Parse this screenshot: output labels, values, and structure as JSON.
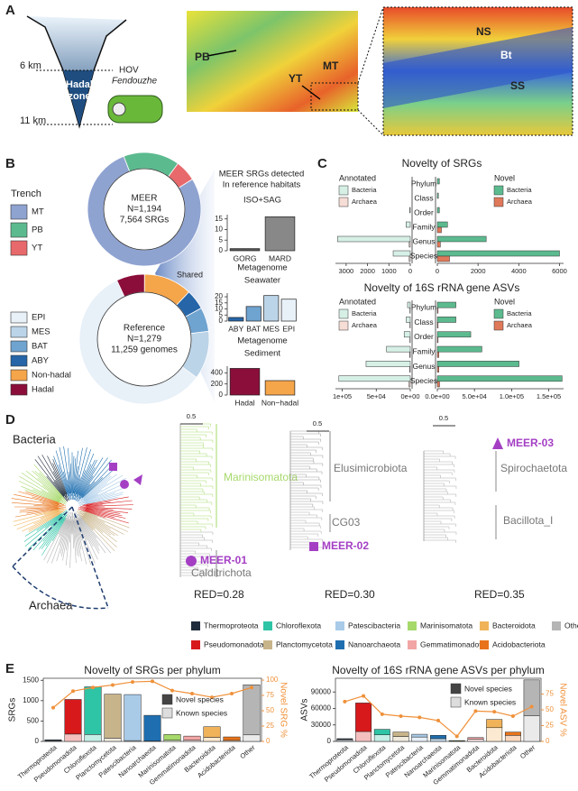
{
  "panel_labels": [
    "A",
    "B",
    "C",
    "D",
    "E"
  ],
  "panel_a": {
    "depths": [
      "6 km",
      "11 km"
    ],
    "zone": [
      "Hadal",
      "zone"
    ],
    "vehicle": [
      "HOV",
      "Fendouzhe"
    ],
    "map_labels": [
      "PB",
      "YT",
      "MT"
    ],
    "zoom_labels": [
      "NS",
      "Bt",
      "SS"
    ]
  },
  "panel_b": {
    "header": [
      "MEER SRGs detected",
      "In reference habitats"
    ],
    "shared": "Shared"
  },
  "panel_d": {
    "domains": [
      "Bacteria",
      "Archaea"
    ],
    "scale": "0.5",
    "trees": [
      {
        "labels": [
          "Marinisomatota",
          "Calditrichota"
        ],
        "genome": "MEER-01",
        "red": "RED=0.28"
      },
      {
        "labels": [
          "Elusimicrobiota",
          "CG03"
        ],
        "genome": "MEER-02",
        "red": "RED=0.30"
      },
      {
        "labels": [
          "Spirochaetota",
          "Bacillota_I"
        ],
        "genome": "MEER-03",
        "red": "RED=0.35"
      }
    ],
    "phyla": [
      {
        "name": "Thermoproteota",
        "color": "#1f2d3d"
      },
      {
        "name": "Pseudomonadota",
        "color": "#d7191c"
      },
      {
        "name": "Chloroflexota",
        "color": "#2ec4a6"
      },
      {
        "name": "Planctomycetota",
        "color": "#c8b48a"
      },
      {
        "name": "Patescibacteria",
        "color": "#a9cbe8"
      },
      {
        "name": "Nanoarchaeota",
        "color": "#1f6fb0"
      },
      {
        "name": "Marinisomatota",
        "color": "#a6d96a"
      },
      {
        "name": "Gemmatimonadota",
        "color": "#f2a5a5"
      },
      {
        "name": "Bacteroidota",
        "color": "#f0b35a"
      },
      {
        "name": "Acidobacteriota",
        "color": "#e8731a"
      },
      {
        "name": "Other",
        "color": "#b5b5b5"
      }
    ]
  },
  "chart_data": [
    {
      "type": "pie",
      "legend_title": "Trench",
      "center_text": [
        "MEER",
        "N=1,194",
        "7,564 SRGs"
      ],
      "categories": [
        "MT",
        "PB",
        "YT"
      ],
      "values": [
        78,
        16,
        6
      ],
      "colors": [
        "#8fa3d1",
        "#5cba8f",
        "#e8696b"
      ]
    },
    {
      "type": "pie",
      "center_text": [
        "Reference",
        "N=1,279",
        "11,259 genomes"
      ],
      "categories": [
        "EPI",
        "MES",
        "BAT",
        "ABY",
        "Non-hadal",
        "Hadal"
      ],
      "values": [
        58,
        12,
        6,
        5,
        12,
        7
      ],
      "colors": [
        "#e8f0f8",
        "#bcd4e8",
        "#6fa3d0",
        "#2565a8",
        "#f5a54a",
        "#8b0e3a"
      ]
    },
    {
      "type": "bar",
      "title": [
        "ISO+SAG"
      ],
      "categories": [
        "GORG",
        "MARD"
      ],
      "values": [
        1,
        16
      ],
      "colors": [
        "#555555",
        "#888888"
      ],
      "ylim": [
        0,
        17
      ],
      "yticks": [
        0,
        5,
        10,
        15
      ]
    },
    {
      "type": "bar",
      "title": [
        "Metagenome",
        "Seawater"
      ],
      "categories": [
        "ABY",
        "BAT",
        "MES",
        "EPI"
      ],
      "values": [
        3,
        12,
        21,
        18
      ],
      "colors": [
        "#2565a8",
        "#6fa3d0",
        "#bcd4e8",
        "#e8f0f8"
      ],
      "ylim": [
        0,
        23
      ],
      "yticks": [
        0,
        5,
        10,
        15,
        20
      ]
    },
    {
      "type": "bar",
      "title": [
        "Metagenome",
        "Sediment"
      ],
      "categories": [
        "Hadal",
        "Non−hadal"
      ],
      "values": [
        480,
        260
      ],
      "colors": [
        "#8b0e3a",
        "#f5a54a"
      ],
      "ylim": [
        0,
        520
      ],
      "yticks": [
        0,
        200,
        400
      ]
    },
    {
      "type": "butterfly",
      "title": "Novelty of SRGs",
      "categories": [
        "Phylum",
        "Class",
        "Order",
        "Family",
        "Genus",
        "Species"
      ],
      "sides": [
        {
          "legend_title": "Annotated",
          "xlim": [
            0,
            3500
          ],
          "xticks": [
            3000,
            2000,
            1000,
            0
          ],
          "series": [
            {
              "name": "Bacteria",
              "color": "#d6f0e6",
              "values": [
                0,
                0,
                30,
                200,
                3400,
                800
              ]
            },
            {
              "name": "Archaea",
              "color": "#f6ddd5",
              "values": [
                0,
                0,
                0,
                0,
                50,
                50
              ]
            }
          ]
        },
        {
          "legend_title": "Novel",
          "xlim": [
            0,
            6200
          ],
          "xticks": [
            0,
            2000,
            4000,
            6000
          ],
          "series": [
            {
              "name": "Bacteria",
              "color": "#5cba8f",
              "values": [
                100,
                50,
                100,
                500,
                2400,
                6000
              ]
            },
            {
              "name": "Archaea",
              "color": "#e0795a",
              "values": [
                0,
                0,
                0,
                200,
                150,
                600
              ]
            }
          ]
        }
      ]
    },
    {
      "type": "butterfly",
      "title": "Novelty of 16S rRNA gene ASVs",
      "categories": [
        "Phylum",
        "Class",
        "Order",
        "Family",
        "Genus",
        "Species"
      ],
      "sides": [
        {
          "legend_title": "Annotated",
          "xlim": [
            0,
            110000
          ],
          "xticks": [
            {
              "value": 100000,
              "label": "1e+05"
            },
            {
              "value": 50000,
              "label": "5e+04"
            },
            {
              "value": 0,
              "label": "0e+00"
            }
          ],
          "series": [
            {
              "name": "Bacteria",
              "color": "#d6f0e6",
              "values": [
                4000,
                6000,
                9000,
                35000,
                65000,
                105000
              ]
            },
            {
              "name": "Archaea",
              "color": "#f6ddd5",
              "values": [
                500,
                500,
                500,
                1000,
                1000,
                2000
              ]
            }
          ]
        },
        {
          "legend_title": "Novel",
          "xlim": [
            0,
            170000
          ],
          "xticks": [
            {
              "value": 0,
              "label": "0.0e+00"
            },
            {
              "value": 50000,
              "label": "5.0e+04"
            },
            {
              "value": 100000,
              "label": "1.0e+05"
            },
            {
              "value": 150000,
              "label": "1.5e+05"
            }
          ],
          "series": [
            {
              "name": "Bacteria",
              "color": "#5cba8f",
              "values": [
                25000,
                25000,
                45000,
                60000,
                110000,
                168000
              ]
            },
            {
              "name": "Archaea",
              "color": "#e0795a",
              "values": [
                1000,
                1000,
                1000,
                2000,
                2000,
                3000
              ]
            }
          ]
        }
      ]
    },
    {
      "type": "combo",
      "title": "Novelty of SRGs per phylum",
      "ylabel": "SRGs",
      "categories": [
        "Thermoproteota",
        "Pseudomonadota",
        "Chloroflexota",
        "Planctomycetota",
        "Patescibacteria",
        "Nanoarchaeota",
        "Marinisomatota",
        "Gemmatimonadota",
        "Bacteroidota",
        "Acidobacteriota",
        "Other"
      ],
      "series": [
        {
          "name": "Novel species",
          "color": "#444444",
          "values": [
            25,
            850,
            1170,
            1080,
            1130,
            630,
            140,
            100,
            260,
            85,
            1230
          ]
        },
        {
          "name": "Known species",
          "color": "#dddddd",
          "values": [
            15,
            180,
            170,
            80,
            20,
            10,
            30,
            30,
            100,
            25,
            160
          ]
        },
        {
          "name": "Novel SRG %",
          "axis": "y2",
          "color": "#f0913a",
          "values": [
            55,
            82,
            88,
            92,
            97,
            98,
            83,
            78,
            72,
            78,
            88
          ]
        }
      ],
      "ylim": [
        0,
        1550
      ],
      "yticks": [
        0,
        500,
        1000,
        1500
      ],
      "y2lim": [
        0,
        103
      ],
      "y2ticks": [
        0,
        25,
        50,
        75,
        100
      ]
    },
    {
      "type": "combo",
      "title": "Novelty of 16S rRNA gene ASVs per phylum",
      "ylabel": "ASVs",
      "categories": [
        "Thermoproteota",
        "Pseudomonadota",
        "Chloroflexota",
        "Planctomycetota",
        "Patescibacteria",
        "Nanoarchaeota",
        "Marinisomatota",
        "Gemmatimonadota",
        "Bacteroidota",
        "Acidobacteriota",
        "Other"
      ],
      "series": [
        {
          "name": "Novel species",
          "color": "#444444",
          "values": [
            2000,
            52000,
            10000,
            8000,
            5000,
            6000,
            1000,
            3000,
            15000,
            6000,
            65000
          ]
        },
        {
          "name": "Known species",
          "color": "#dddddd",
          "values": [
            3000,
            18000,
            12000,
            9000,
            8000,
            5000,
            500,
            4000,
            25000,
            11000,
            47000
          ]
        },
        {
          "name": "Novel ASV %",
          "axis": "y2",
          "color": "#f0913a",
          "values": [
            63,
            72,
            43,
            40,
            38,
            33,
            8,
            48,
            47,
            40,
            55
          ]
        }
      ],
      "ylim": [
        0,
        115000
      ],
      "yticks": [
        0,
        30000,
        60000,
        90000
      ],
      "y2lim": [
        0,
        100
      ],
      "y2ticks": [
        0,
        25,
        50,
        75
      ]
    }
  ]
}
